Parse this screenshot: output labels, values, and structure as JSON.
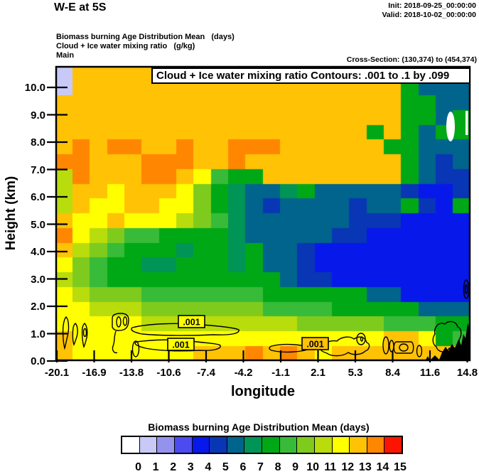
{
  "header": {
    "title": "W-E at 5S",
    "init": "Init: 2018-09-25_00:00:00",
    "valid": "Valid: 2018-10-02_00:00:00",
    "field1": "Biomass burning Age Distribution Mean   (days)",
    "field2": "Cloud + Ice water mixing ratio   (g/kg)",
    "field3": "Main",
    "cross_section": "Cross-Section: (130,374) to (454,374)"
  },
  "chart_data": {
    "type": "heatmap",
    "title": "Cloud + Ice water mixing ratio Contours: .001 to .1 by .099",
    "xlabel": "longitude",
    "ylabel": "Height (km)",
    "x_tick_labels": [
      "-20.1",
      "-16.9",
      "-13.8",
      "-10.6",
      "-7.4",
      "-4.2",
      "-1.1",
      "2.1",
      "5.3",
      "8.4",
      "11.6",
      "14.8"
    ],
    "y_tick_labels": [
      "0.0",
      "1.0",
      "2.0",
      "3.0",
      "4.0",
      "5.0",
      "6.0",
      "7.0",
      "8.0",
      "9.0",
      "10.0"
    ],
    "xlim": [
      -20.1,
      14.8
    ],
    "ylim": [
      0,
      10.8
    ],
    "fill_field": "Biomass burning Age Distribution Mean (days)",
    "contour_field": "Cloud + Ice water mixing ratio (g/kg)",
    "contour_levels": ".001 to .1 by .099",
    "contour_labels": [
      ".001",
      ".001",
      ".001"
    ],
    "palette": [
      "#ffffff",
      "#c9c9f8",
      "#9393ee",
      "#4b4bf1",
      "#0718ea",
      "#0936b4",
      "#00648c",
      "#009456",
      "#00a816",
      "#38bb38",
      "#7ecb1e",
      "#b9dc0c",
      "#ffff00",
      "#ffc205",
      "#ff8600",
      "#fb1500"
    ],
    "colorbar": {
      "title": "Biomass burning Age Distribution Mean  (days)",
      "tick_labels": [
        "0",
        "1",
        "2",
        "3",
        "4",
        "5",
        "6",
        "7",
        "8",
        "9",
        "10",
        "11",
        "12",
        "13",
        "14",
        "15"
      ]
    },
    "grid": {
      "cols": 24,
      "rows": 20,
      "values": [
        [
          1,
          13,
          13,
          13,
          13,
          13,
          13,
          13,
          13,
          13,
          13,
          13,
          13,
          13,
          13,
          13,
          13,
          13,
          13,
          13,
          8,
          8,
          7,
          7
        ],
        [
          1,
          13,
          13,
          13,
          13,
          13,
          13,
          13,
          13,
          13,
          13,
          13,
          13,
          13,
          13,
          13,
          13,
          13,
          13,
          13,
          8,
          6,
          6,
          6
        ],
        [
          13,
          13,
          13,
          13,
          13,
          13,
          13,
          13,
          13,
          13,
          13,
          13,
          13,
          13,
          13,
          13,
          13,
          13,
          13,
          13,
          8,
          8,
          6,
          6
        ],
        [
          13,
          13,
          13,
          13,
          13,
          13,
          13,
          13,
          13,
          13,
          13,
          13,
          13,
          13,
          13,
          13,
          13,
          13,
          13,
          13,
          8,
          8,
          6,
          8
        ],
        [
          13,
          13,
          13,
          13,
          13,
          13,
          13,
          13,
          13,
          13,
          13,
          13,
          13,
          13,
          13,
          13,
          13,
          13,
          8,
          13,
          8,
          6,
          8,
          8
        ],
        [
          13,
          14,
          13,
          14,
          14,
          13,
          13,
          14,
          13,
          13,
          14,
          14,
          14,
          13,
          13,
          13,
          13,
          13,
          13,
          8,
          8,
          6,
          6,
          6
        ],
        [
          14,
          14,
          13,
          13,
          13,
          14,
          14,
          14,
          13,
          13,
          14,
          13,
          13,
          13,
          13,
          13,
          13,
          13,
          13,
          13,
          8,
          6,
          5,
          6
        ],
        [
          11,
          14,
          13,
          13,
          13,
          14,
          14,
          13,
          12,
          9,
          8,
          8,
          13,
          13,
          13,
          13,
          13,
          13,
          13,
          13,
          8,
          6,
          5,
          5
        ],
        [
          11,
          13,
          13,
          12,
          13,
          13,
          13,
          12,
          10,
          8,
          7,
          6,
          6,
          7,
          8,
          6,
          6,
          6,
          6,
          6,
          5,
          4,
          4,
          5
        ],
        [
          11,
          13,
          12,
          12,
          13,
          13,
          12,
          12,
          10,
          8,
          7,
          6,
          5,
          6,
          6,
          6,
          6,
          5,
          6,
          6,
          8,
          5,
          4,
          8
        ],
        [
          13,
          12,
          12,
          13,
          12,
          12,
          12,
          11,
          10,
          9,
          7,
          6,
          6,
          6,
          6,
          6,
          6,
          5,
          5,
          5,
          4,
          4,
          4,
          4
        ],
        [
          14,
          12,
          11,
          10,
          9,
          9,
          8,
          8,
          8,
          8,
          7,
          6,
          6,
          6,
          6,
          6,
          5,
          5,
          4,
          4,
          4,
          4,
          4,
          4
        ],
        [
          13,
          11,
          10,
          9,
          8,
          8,
          8,
          7,
          8,
          8,
          7,
          8,
          6,
          6,
          5,
          4,
          4,
          4,
          4,
          4,
          4,
          4,
          4,
          4
        ],
        [
          12,
          10,
          9,
          8,
          8,
          7,
          7,
          8,
          8,
          8,
          7,
          8,
          6,
          6,
          5,
          4,
          4,
          4,
          4,
          4,
          4,
          4,
          4,
          4
        ],
        [
          11,
          10,
          9,
          8,
          8,
          8,
          8,
          8,
          8,
          8,
          8,
          8,
          8,
          6,
          5,
          5,
          4,
          4,
          4,
          4,
          4,
          4,
          4,
          4
        ],
        [
          12,
          11,
          10,
          10,
          10,
          9,
          9,
          9,
          9,
          9,
          9,
          9,
          8,
          8,
          8,
          8,
          8,
          8,
          6,
          6,
          4,
          4,
          4,
          4
        ],
        [
          12,
          12,
          11,
          11,
          11,
          10,
          10,
          10,
          10,
          10,
          10,
          10,
          9,
          9,
          9,
          9,
          8,
          8,
          8,
          8,
          8,
          6,
          6,
          6
        ],
        [
          12,
          12,
          12,
          12,
          12,
          11,
          11,
          11,
          11,
          11,
          11,
          11,
          11,
          11,
          10,
          10,
          10,
          10,
          10,
          9,
          9,
          9,
          8,
          8
        ],
        [
          13,
          12,
          12,
          12,
          12,
          12,
          12,
          12,
          12,
          12,
          12,
          12,
          12,
          12,
          12,
          12,
          12,
          12,
          12,
          13,
          13,
          12,
          8,
          9
        ],
        [
          13,
          12,
          12,
          12,
          12,
          12,
          12,
          12,
          13,
          13,
          13,
          14,
          13,
          14,
          13,
          12,
          13,
          13,
          13,
          13,
          13,
          13,
          13,
          13
        ]
      ]
    }
  }
}
